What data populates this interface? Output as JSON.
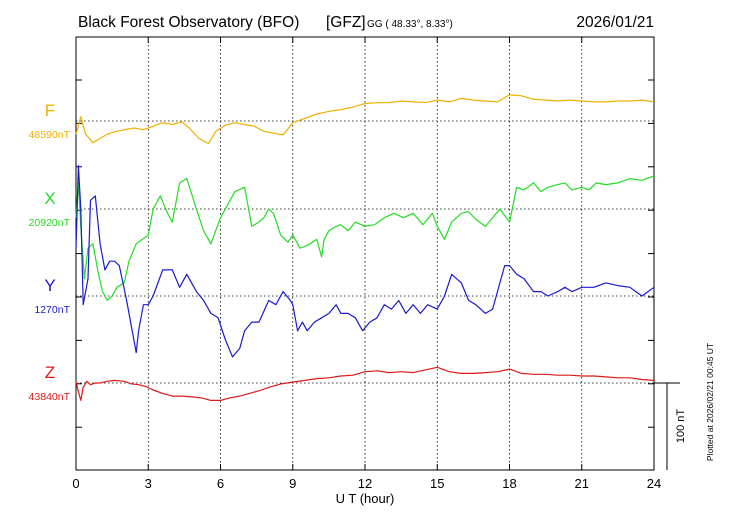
{
  "header": {
    "title": "Black Forest Observatory (BFO)",
    "agency": "[GFZ]",
    "coords": "GG ( 48.33°,   8.33°)",
    "date": "2026/01/21"
  },
  "side_note": "Plotted at 2026/02/21 00:45 UT",
  "chart_data": {
    "type": "line",
    "xlabel": "U T (hour)",
    "xlim": [
      0,
      24
    ],
    "xticks": [
      0,
      3,
      6,
      9,
      12,
      15,
      18,
      21,
      24
    ],
    "scale_bar": {
      "label": "100 nT",
      "value_nT": 100
    },
    "grid": true,
    "series": [
      {
        "name": "F",
        "baseline_label": "48590nT",
        "color": "#f0b000",
        "x": [
          0,
          0.2,
          0.4,
          0.7,
          1,
          1.3,
          1.7,
          2,
          2.4,
          2.8,
          3.2,
          3.6,
          4,
          4.4,
          4.7,
          5.1,
          5.5,
          5.8,
          6.2,
          6.6,
          7,
          7.4,
          7.8,
          8.2,
          8.6,
          9,
          9.5,
          10,
          10.5,
          11,
          11.5,
          12,
          12.5,
          13,
          13.5,
          14,
          14.5,
          15,
          15.5,
          16,
          16.5,
          17,
          17.5,
          18,
          18.5,
          19,
          19.5,
          20,
          20.5,
          21,
          21.5,
          22,
          22.5,
          23,
          23.5,
          24
        ],
        "y": [
          -15,
          5,
          -15,
          -25,
          -20,
          -15,
          -12,
          -10,
          -8,
          -10,
          -6,
          -2,
          -4,
          -1,
          -8,
          -20,
          -26,
          -12,
          -5,
          -2,
          -4,
          -6,
          -12,
          -14,
          -16,
          -2,
          3,
          8,
          11,
          13,
          16,
          20,
          21,
          21,
          23,
          22,
          21,
          24,
          22,
          26,
          24,
          23,
          22,
          30,
          29,
          25,
          24,
          23,
          24,
          23,
          22,
          22,
          23,
          23,
          24,
          22
        ]
      },
      {
        "name": "X",
        "baseline_label": "20920nT",
        "color": "#22dd22",
        "x": [
          0,
          0.1,
          0.2,
          0.35,
          0.5,
          0.7,
          0.9,
          1.1,
          1.3,
          1.5,
          1.7,
          2,
          2.2,
          2.5,
          3,
          3.2,
          3.5,
          3.8,
          4,
          4.3,
          4.6,
          5,
          5.3,
          5.6,
          6,
          6.3,
          6.6,
          7,
          7.3,
          7.6,
          7.8,
          8,
          8.2,
          8.5,
          8.8,
          9,
          9.3,
          9.6,
          10,
          10.2,
          10.3,
          10.5,
          10.8,
          11,
          11.3,
          11.6,
          12,
          12.4,
          12.8,
          13.2,
          13.6,
          14,
          14.4,
          14.8,
          15,
          15.3,
          15.6,
          16,
          16.3,
          16.6,
          17,
          17.3,
          17.6,
          18,
          18.3,
          18.6,
          19,
          19.3,
          19.6,
          20,
          20.3,
          20.6,
          21,
          21.3,
          21.6,
          22,
          22.5,
          23,
          23.5,
          24
        ],
        "y": [
          -10,
          30,
          -20,
          -80,
          -45,
          -40,
          -70,
          -95,
          -105,
          -100,
          -90,
          -85,
          -60,
          -40,
          -30,
          0,
          15,
          -5,
          -15,
          30,
          35,
          0,
          -25,
          -40,
          -10,
          5,
          20,
          25,
          -20,
          -15,
          -10,
          0,
          -5,
          -30,
          -38,
          -30,
          -45,
          -42,
          -35,
          -55,
          -35,
          -25,
          -20,
          -18,
          -25,
          -15,
          -20,
          -18,
          -10,
          -5,
          -10,
          -5,
          -18,
          -5,
          -20,
          -35,
          -15,
          -5,
          -3,
          -12,
          -20,
          -10,
          0,
          -15,
          25,
          22,
          30,
          20,
          25,
          28,
          30,
          22,
          25,
          22,
          30,
          28,
          30,
          35,
          33,
          38
        ]
      },
      {
        "name": "Y",
        "baseline_label": "1270nT",
        "color": "#1a1ad0",
        "x": [
          0,
          0.1,
          0.2,
          0.3,
          0.5,
          0.6,
          0.8,
          1,
          1.2,
          1.4,
          1.6,
          1.8,
          2.1,
          2.3,
          2.5,
          2.6,
          2.8,
          3,
          3.2,
          3.6,
          4,
          4.3,
          4.6,
          5,
          5.3,
          5.6,
          5.9,
          6.2,
          6.5,
          6.8,
          7,
          7.3,
          7.6,
          8,
          8.3,
          8.6,
          8.9,
          9,
          9.2,
          9.4,
          9.6,
          9.9,
          10.2,
          10.5,
          10.8,
          11,
          11.3,
          11.6,
          11.9,
          12.2,
          12.5,
          12.8,
          13.1,
          13.4,
          13.7,
          14,
          14.3,
          14.6,
          15,
          15.3,
          15.6,
          16,
          16.3,
          16.6,
          17,
          17.3,
          17.6,
          17.8,
          18,
          18.3,
          18.6,
          19,
          19.3,
          19.6,
          20,
          20.3,
          20.6,
          21,
          21.5,
          22,
          22.5,
          23,
          23.5,
          24
        ],
        "y": [
          55,
          150,
          100,
          -10,
          20,
          110,
          115,
          60,
          30,
          40,
          40,
          35,
          -5,
          -35,
          -65,
          -40,
          -10,
          -10,
          0,
          30,
          30,
          10,
          25,
          5,
          -5,
          -20,
          -25,
          -50,
          -70,
          -60,
          -40,
          -30,
          -30,
          -5,
          -10,
          5,
          -5,
          -10,
          -40,
          -30,
          -40,
          -30,
          -25,
          -20,
          -10,
          -20,
          -20,
          -25,
          -40,
          -30,
          -25,
          -10,
          -15,
          -5,
          -20,
          -10,
          -20,
          -10,
          -15,
          0,
          25,
          15,
          -5,
          -10,
          -20,
          -15,
          15,
          35,
          35,
          25,
          20,
          5,
          5,
          0,
          5,
          10,
          5,
          10,
          10,
          15,
          12,
          10,
          0,
          10
        ]
      },
      {
        "name": "Z",
        "baseline_label": "43840nT",
        "color": "#dd1a1a",
        "x": [
          0,
          0.1,
          0.2,
          0.3,
          0.45,
          0.6,
          0.8,
          1,
          1.3,
          1.6,
          2,
          2.3,
          2.6,
          2.9,
          3.2,
          3.6,
          4,
          4.4,
          4.8,
          5.2,
          5.6,
          6,
          6.4,
          6.8,
          7.2,
          7.6,
          8,
          8.5,
          9,
          9.5,
          10,
          10.5,
          11,
          11.5,
          12,
          12.5,
          13,
          13.5,
          14,
          14.5,
          15,
          15.5,
          16,
          16.5,
          17,
          17.5,
          18,
          18.5,
          19,
          19.5,
          20,
          20.5,
          21,
          21.5,
          22,
          22.5,
          23,
          23.5,
          24
        ],
        "y": [
          2,
          -10,
          -20,
          -5,
          2,
          -2,
          0,
          0,
          2,
          3,
          2,
          -1,
          -2,
          -4,
          -8,
          -12,
          -15,
          -15,
          -16,
          -17,
          -20,
          -20,
          -17,
          -15,
          -12,
          -9,
          -5,
          -1,
          1,
          3,
          5,
          6,
          8,
          9,
          13,
          14,
          12,
          13,
          12,
          15,
          18,
          13,
          11,
          11,
          12,
          13,
          16,
          11,
          10,
          10,
          9,
          9,
          8,
          8,
          7,
          6,
          6,
          4,
          3
        ]
      }
    ]
  }
}
